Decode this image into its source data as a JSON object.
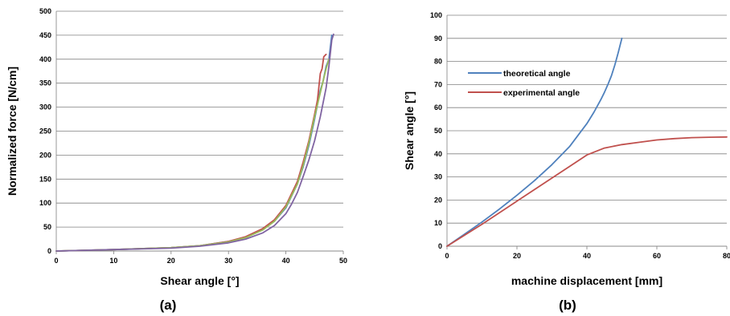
{
  "chart_data": [
    {
      "type": "line",
      "panel_label": "(a)",
      "xlabel": "Shear angle [°]",
      "ylabel": "Normalized force [N/cm]",
      "xlim": [
        0,
        50
      ],
      "ylim": [
        0,
        500
      ],
      "x_ticks": [
        0,
        10,
        20,
        30,
        40,
        50
      ],
      "y_ticks": [
        0,
        50,
        100,
        150,
        200,
        250,
        300,
        350,
        400,
        450,
        500
      ],
      "grid": "horizontal",
      "legend": "none",
      "series": [
        {
          "color": "#4f81bd",
          "x": [
            0,
            10,
            20,
            25,
            30,
            33,
            36,
            38,
            40,
            42,
            43,
            44,
            45,
            46,
            46.5,
            47,
            47.5,
            48
          ],
          "y": [
            0,
            3,
            7,
            11,
            20,
            29,
            45,
            62,
            90,
            140,
            175,
            220,
            275,
            335,
            355,
            385,
            400,
            450
          ]
        },
        {
          "color": "#c0504d",
          "x": [
            0,
            10,
            20,
            25,
            30,
            33,
            36,
            38,
            40,
            42,
            43,
            44,
            45,
            45.5,
            46,
            46.3,
            46.6,
            47
          ],
          "y": [
            0,
            3,
            7,
            11,
            20,
            30,
            47,
            65,
            95,
            145,
            185,
            230,
            285,
            315,
            370,
            380,
            405,
            410
          ]
        },
        {
          "color": "#9bbb59",
          "x": [
            0,
            10,
            20,
            25,
            30,
            33,
            36,
            38,
            40,
            42,
            43,
            44,
            45,
            46,
            46.5,
            47,
            47.5
          ],
          "y": [
            0,
            3,
            7,
            11,
            19,
            28,
            44,
            62,
            92,
            140,
            178,
            225,
            280,
            330,
            355,
            380,
            400
          ]
        },
        {
          "color": "#8064a2",
          "x": [
            0,
            10,
            20,
            25,
            30,
            33,
            36,
            38,
            40,
            41,
            42,
            43,
            44,
            45,
            46,
            47,
            47.5,
            48,
            48.3
          ],
          "y": [
            0,
            3,
            6,
            10,
            17,
            25,
            38,
            53,
            78,
            98,
            122,
            155,
            190,
            230,
            280,
            340,
            385,
            440,
            452
          ]
        }
      ]
    },
    {
      "type": "line",
      "panel_label": "(b)",
      "xlabel": "machine displacement [mm]",
      "ylabel": "Shear angle [°]",
      "xlim": [
        0,
        80
      ],
      "ylim": [
        0,
        100
      ],
      "x_ticks": [
        0,
        20,
        40,
        60,
        80
      ],
      "y_ticks": [
        0,
        10,
        20,
        30,
        40,
        50,
        60,
        70,
        80,
        90,
        100
      ],
      "grid": "horizontal",
      "legend": "top-left",
      "series": [
        {
          "name": "theoretical angle",
          "color": "#4f81bd",
          "x": [
            0,
            5,
            10,
            15,
            20,
            25,
            30,
            35,
            40,
            42,
            44,
            45,
            46,
            47,
            48,
            49,
            49.5,
            50
          ],
          "y": [
            0,
            5.2,
            10.5,
            16.1,
            22.1,
            28.4,
            35.3,
            43.1,
            53.1,
            58.0,
            63.5,
            66.6,
            70.0,
            73.8,
            78.5,
            84.0,
            87.0,
            90
          ]
        },
        {
          "name": "experimental angle",
          "color": "#c0504d",
          "x": [
            0,
            10,
            20,
            30,
            35,
            40,
            45,
            50,
            55,
            60,
            65,
            70,
            75,
            80
          ],
          "y": [
            0,
            9.5,
            19.5,
            29.5,
            34.5,
            39.5,
            42.5,
            44,
            45,
            46,
            46.6,
            47,
            47.2,
            47.3
          ]
        }
      ]
    }
  ]
}
